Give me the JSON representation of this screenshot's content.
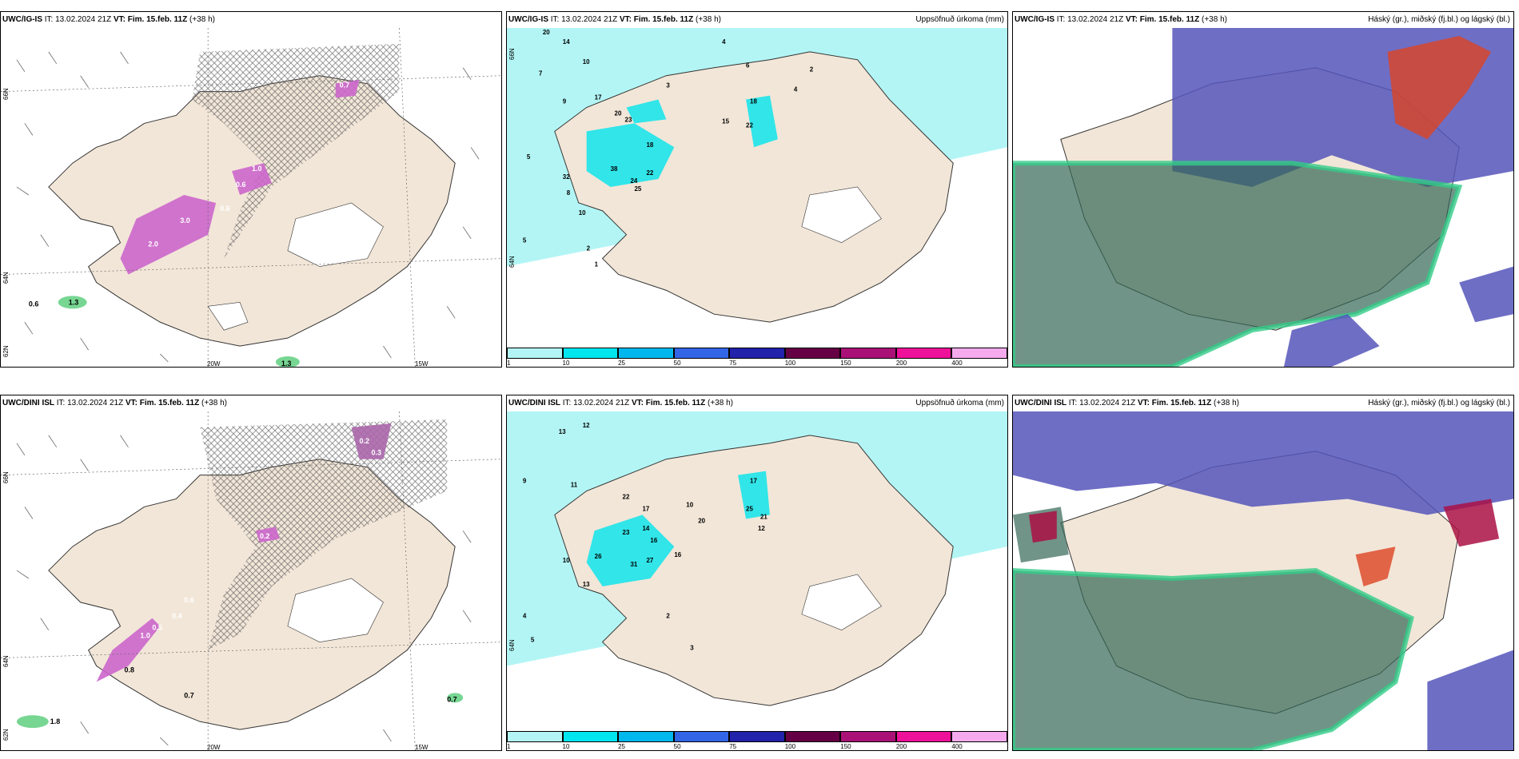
{
  "panels": {
    "p1": {
      "model": "UWC/IG-IS",
      "it": "IT: 13.02.2024 21Z",
      "vt_label": "VT:",
      "vt": "Fim. 15.feb. 11Z",
      "lead": "(+38 h)",
      "right": ""
    },
    "p2": {
      "model": "UWC/IG-IS",
      "it": "IT: 13.02.2024 21Z",
      "vt_label": "VT:",
      "vt": "Fim. 15.feb. 11Z",
      "lead": "(+38 h)",
      "right": "Uppsöfnuð úrkoma (mm)"
    },
    "p3": {
      "model": "UWC/IG-IS",
      "it": "IT: 13.02.2024 21Z",
      "vt_label": "VT:",
      "vt": "Fim. 15.feb. 11Z",
      "lead": "(+38 h)",
      "right": "Háský (gr.), miðský (fj.bl.) og lágský (bl.)"
    },
    "p4": {
      "model": "UWC/DINI ISL",
      "it": "IT: 13.02.2024 21Z",
      "vt_label": "VT:",
      "vt": "Fim. 15.feb. 11Z",
      "lead": "(+38 h)",
      "right": ""
    },
    "p5": {
      "model": "UWC/DINI ISL",
      "it": "IT: 13.02.2024 21Z",
      "vt_label": "VT:",
      "vt": "Fim. 15.feb. 11Z",
      "lead": "(+38 h)",
      "right": "Uppsöfnuð úrkoma (mm)"
    },
    "p6": {
      "model": "UWC/DINI ISL",
      "it": "IT: 13.02.2024 21Z",
      "vt_label": "VT:",
      "vt": "Fim. 15.feb. 11Z",
      "lead": "(+38 h)",
      "right": "Háský (gr.), miðský (fj.bl.) og lágský (bl.)"
    }
  },
  "axis_labels": {
    "lat66": "66N",
    "lat64": "64N",
    "lat62": "62N",
    "lon20": "20W",
    "lon15": "15W"
  },
  "colorbar": {
    "ticks": [
      "1",
      "10",
      "25",
      "50",
      "75",
      "100",
      "150",
      "200",
      "400"
    ],
    "colors": [
      "#b3f5f5",
      "#00e5ee",
      "#00b8ee",
      "#3366e6",
      "#2222aa",
      "#660044",
      "#aa1177",
      "#ee1199",
      "#f5aaee"
    ]
  },
  "precip_labels_top": [
    "20",
    "14",
    "10",
    "7",
    "4",
    "6",
    "2",
    "3",
    "9",
    "17",
    "20",
    "23",
    "18",
    "15",
    "22",
    "18",
    "4",
    "22",
    "24",
    "25",
    "38",
    "32",
    "8",
    "10",
    "5",
    "5",
    "2",
    "1"
  ],
  "precip_labels_bottom": [
    "13",
    "12",
    "9",
    "11",
    "22",
    "17",
    "23",
    "14",
    "16",
    "10",
    "17",
    "25",
    "21",
    "20",
    "13",
    "12",
    "16",
    "26",
    "31",
    "27",
    "10",
    "4",
    "5",
    "2",
    "3"
  ],
  "snow_labels_top": [
    "0.7",
    "1.0",
    "0.6",
    "0.6",
    "3.0",
    "2.0",
    "1.3",
    "0.6",
    "1.3"
  ],
  "snow_labels_bottom": [
    "0.2",
    "0.2",
    "0.3",
    "0.6",
    "0.4",
    "0.5",
    "1.0",
    "0.7",
    "0.7",
    "0.8",
    "1.8"
  ],
  "colors": {
    "land": "#f2e6d8",
    "precip_light": "#b3f5f5",
    "precip_mid": "#00e5ee",
    "snow": "#cc66cc",
    "hatch": "#444444",
    "green": "#33cc66",
    "cloud_blue": "#5555bb",
    "cloud_dark": "#336655"
  }
}
